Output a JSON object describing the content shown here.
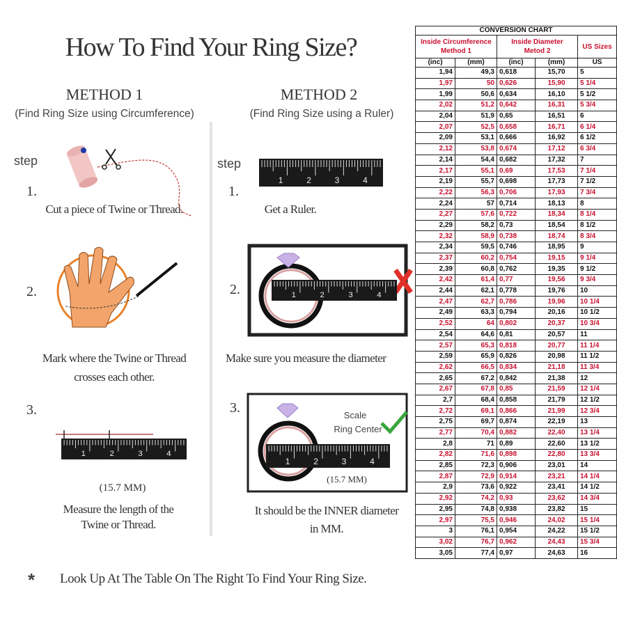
{
  "title": "How To Find Your Ring Size?",
  "methods": [
    {
      "heading": "METHOD 1",
      "subtitle": "(Find Ring Size using Circumference)",
      "step_label": "step",
      "steps": [
        {
          "number": "1.",
          "caption": [
            "Cut a piece of Twine or Thread."
          ]
        },
        {
          "number": "2.",
          "caption": [
            "Mark where the Twine or Thread",
            "crosses each other."
          ]
        },
        {
          "number": "3.",
          "note": "(15.7 MM)",
          "caption": [
            "Measure the length of the",
            "Twine or Thread."
          ]
        }
      ]
    },
    {
      "heading": "METHOD 2",
      "subtitle": "(Find Ring Size using a Ruler)",
      "step_label": "step",
      "steps": [
        {
          "number": "1.",
          "caption": [
            "Get a Ruler."
          ]
        },
        {
          "number": "2.",
          "caption": [
            "Make sure you measure the diameter"
          ]
        },
        {
          "number": "3.",
          "note": "(15.7 MM)",
          "scale": "Scale",
          "ring_center": "Ring Center",
          "caption": [
            "It should be the INNER diameter",
            "in MM."
          ]
        }
      ]
    }
  ],
  "ruler_labels": [
    "1",
    "2",
    "3",
    "4"
  ],
  "footnote": {
    "symbol": "*",
    "text": "Look Up At The Table On The Right To Find Your Ring Size."
  },
  "table": {
    "title": "CONVERSION CHART",
    "group_headers": [
      {
        "title": "Inside Circumference",
        "subtitle": "Method 1"
      },
      {
        "title": "Inside Diameter",
        "subtitle": "Metod 2"
      },
      {
        "title": "US Sizes"
      }
    ],
    "units": [
      "(inc)",
      "(mm)",
      "(inc)",
      "(mm)",
      "US"
    ],
    "rows": [
      [
        "1,94",
        "49,3",
        "0,618",
        "15,70",
        "5"
      ],
      [
        "1,97",
        "50",
        "0,626",
        "15,90",
        "5 1/4"
      ],
      [
        "1,99",
        "50,6",
        "0,634",
        "16,10",
        "5 1/2"
      ],
      [
        "2,02",
        "51,2",
        "0,642",
        "16,31",
        "5 3/4"
      ],
      [
        "2,04",
        "51,9",
        "0,65",
        "16,51",
        "6"
      ],
      [
        "2,07",
        "52,5",
        "0,658",
        "16,71",
        "6 1/4"
      ],
      [
        "2,09",
        "53,1",
        "0,666",
        "16,92",
        "6 1/2"
      ],
      [
        "2,12",
        "53,8",
        "0,674",
        "17,12",
        "6 3/4"
      ],
      [
        "2,14",
        "54,4",
        "0,682",
        "17,32",
        "7"
      ],
      [
        "2,17",
        "55,1",
        "0,69",
        "17,53",
        "7 1/4"
      ],
      [
        "2,19",
        "55,7",
        "0,698",
        "17,73",
        "7 1/2"
      ],
      [
        "2,22",
        "56,3",
        "0,706",
        "17,93",
        "7 3/4"
      ],
      [
        "2,24",
        "57",
        "0,714",
        "18,13",
        "8"
      ],
      [
        "2,27",
        "57,6",
        "0,722",
        "18,34",
        "8 1/4"
      ],
      [
        "2,29",
        "58,2",
        "0,73",
        "18,54",
        "8 1/2"
      ],
      [
        "2,32",
        "58,9",
        "0,738",
        "18,74",
        "8 3/4"
      ],
      [
        "2,34",
        "59,5",
        "0,746",
        "18,95",
        "9"
      ],
      [
        "2,37",
        "60,2",
        "0,754",
        "19,15",
        "9 1/4"
      ],
      [
        "2,39",
        "60,8",
        "0,762",
        "19,35",
        "9 1/2"
      ],
      [
        "2,42",
        "61,4",
        "0,77",
        "19,56",
        "9 3/4"
      ],
      [
        "2,44",
        "62,1",
        "0,778",
        "19,76",
        "10"
      ],
      [
        "2,47",
        "62,7",
        "0,786",
        "19,96",
        "10 1/4"
      ],
      [
        "2,49",
        "63,3",
        "0,794",
        "20,16",
        "10 1/2"
      ],
      [
        "2,52",
        "64",
        "0,802",
        "20,37",
        "10 3/4"
      ],
      [
        "2,54",
        "64,6",
        "0,81",
        "20,57",
        "11"
      ],
      [
        "2,57",
        "65,3",
        "0,818",
        "20,77",
        "11 1/4"
      ],
      [
        "2,59",
        "65,9",
        "0,826",
        "20,98",
        "11 1/2"
      ],
      [
        "2,62",
        "66,5",
        "0,834",
        "21,18",
        "11 3/4"
      ],
      [
        "2,65",
        "67,2",
        "0,842",
        "21,38",
        "12"
      ],
      [
        "2,67",
        "67,8",
        "0,85",
        "21,59",
        "12 1/4"
      ],
      [
        "2,7",
        "68,4",
        "0,858",
        "21,79",
        "12 1/2"
      ],
      [
        "2,72",
        "69,1",
        "0,866",
        "21,99",
        "12 3/4"
      ],
      [
        "2,75",
        "69,7",
        "0,874",
        "22,19",
        "13"
      ],
      [
        "2,77",
        "70,4",
        "0,882",
        "22,40",
        "13 1/4"
      ],
      [
        "2,8",
        "71",
        "0,89",
        "22,60",
        "13 1/2"
      ],
      [
        "2,82",
        "71,6",
        "0,898",
        "22,80",
        "13 3/4"
      ],
      [
        "2,85",
        "72,3",
        "0,906",
        "23,01",
        "14"
      ],
      [
        "2,87",
        "72,9",
        "0,914",
        "23,21",
        "14 1/4"
      ],
      [
        "2,9",
        "73,6",
        "0,922",
        "23,41",
        "14 1/2"
      ],
      [
        "2,92",
        "74,2",
        "0,93",
        "23,62",
        "14 3/4"
      ],
      [
        "2,95",
        "74,8",
        "0,938",
        "23,82",
        "15"
      ],
      [
        "2,97",
        "75,5",
        "0,946",
        "24,02",
        "15 1/4"
      ],
      [
        "3",
        "76,1",
        "0,954",
        "24,22",
        "15 1/2"
      ],
      [
        "3,02",
        "76,7",
        "0,962",
        "24,43",
        "15 3/4"
      ],
      [
        "3,05",
        "77,4",
        "0,97",
        "24,63",
        "16"
      ]
    ]
  }
}
